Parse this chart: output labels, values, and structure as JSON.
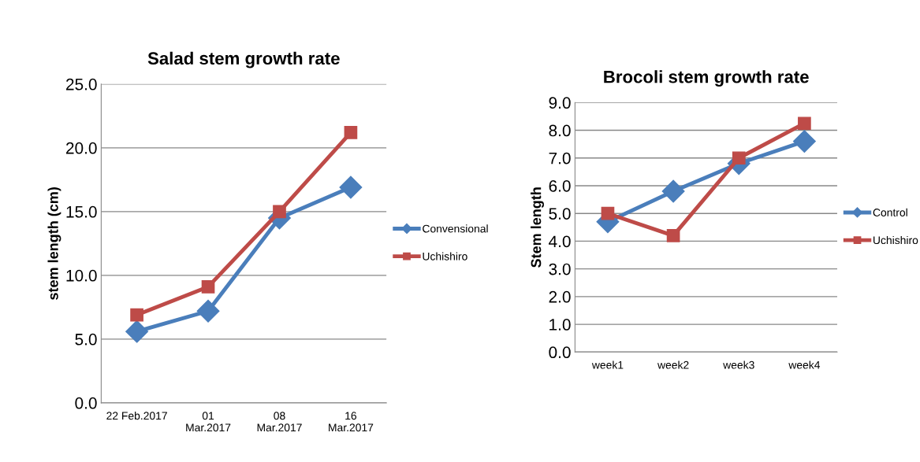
{
  "chart_data": [
    {
      "type": "line",
      "title": "Salad stem growth rate",
      "ylabel": "stem length (cm)",
      "categories": [
        "22 Feb.2017",
        "01\nMar.2017",
        "08\nMar.2017",
        "16\nMar.2017"
      ],
      "series": [
        {
          "name": "Convensional",
          "color": "#4a7ebb",
          "marker": "diamond",
          "values": [
            5.6,
            7.2,
            14.5,
            16.9
          ]
        },
        {
          "name": "Uchishiro",
          "color": "#be4b48",
          "marker": "square",
          "values": [
            6.9,
            9.1,
            15.0,
            21.2
          ]
        }
      ],
      "ylim": [
        0,
        25
      ],
      "yticks": [
        {
          "value": 0,
          "label": "0.0"
        },
        {
          "value": 5,
          "label": "5.0"
        },
        {
          "value": 10,
          "label": "10.0"
        },
        {
          "value": 15,
          "label": "15.0"
        },
        {
          "value": 20,
          "label": "20.0"
        },
        {
          "value": 25,
          "label": "25.0"
        }
      ],
      "grid": "y",
      "legend": "right"
    },
    {
      "type": "line",
      "title": "Brocoli stem growth rate",
      "ylabel": "Stem length",
      "categories": [
        "week1",
        "week2",
        "week3",
        "week4"
      ],
      "series": [
        {
          "name": "Control",
          "color": "#4a7ebb",
          "marker": "diamond",
          "values": [
            4.7,
            5.8,
            6.8,
            7.6
          ]
        },
        {
          "name": "Uchishiro",
          "color": "#be4b48",
          "marker": "square",
          "values": [
            5.0,
            4.2,
            7.0,
            8.25
          ]
        }
      ],
      "ylim": [
        0,
        9
      ],
      "yticks": [
        {
          "value": 0,
          "label": "0.0"
        },
        {
          "value": 1,
          "label": "1.0"
        },
        {
          "value": 2,
          "label": "2.0"
        },
        {
          "value": 3,
          "label": "3.0"
        },
        {
          "value": 4,
          "label": "4.0"
        },
        {
          "value": 5,
          "label": "5.0"
        },
        {
          "value": 6,
          "label": "6.0"
        },
        {
          "value": 7,
          "label": "7.0"
        },
        {
          "value": 8,
          "label": "8.0"
        },
        {
          "value": 9,
          "label": "9.0"
        }
      ],
      "grid": "y",
      "legend": "right"
    }
  ]
}
